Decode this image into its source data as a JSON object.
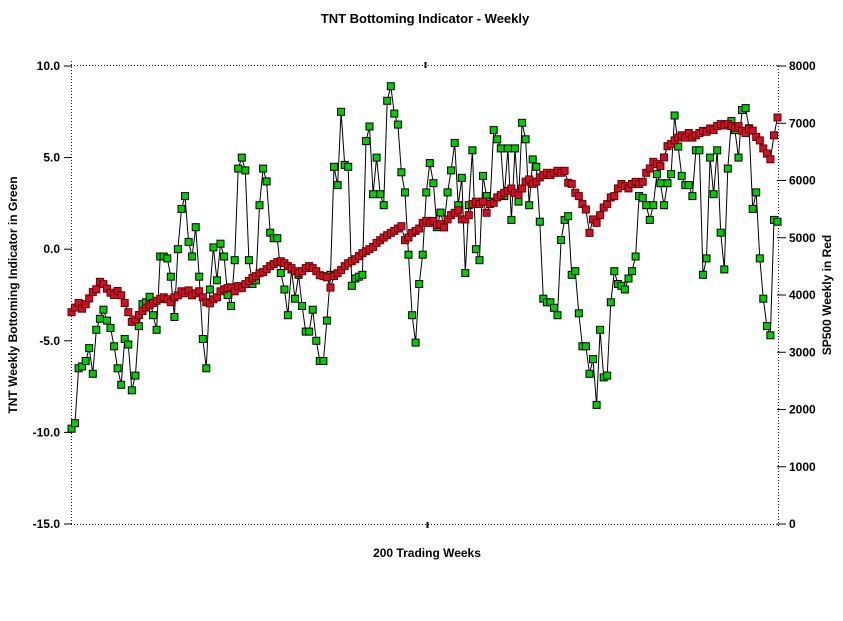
{
  "title": "TNT Bottoming Indicator - Weekly",
  "chart_data": {
    "type": "line",
    "title": "TNT Bottoming Indicator - Weekly",
    "xlabel": "200 Trading Weeks",
    "x_count": 200,
    "grid": false,
    "legend_position": "none",
    "frame_style": "dotted",
    "left_axis": {
      "label": "TNT Weekly Bottoming Indicator in Green",
      "min": -15.0,
      "max": 10.0,
      "ticks": [
        {
          "value": 10,
          "label": "10.0"
        },
        {
          "value": 5,
          "label": "5.0"
        },
        {
          "value": 0,
          "label": "0.0"
        },
        {
          "value": -5,
          "label": "-5.0"
        },
        {
          "value": -10,
          "label": "-10.0"
        },
        {
          "value": -15,
          "label": "-15.0"
        }
      ]
    },
    "right_axis": {
      "label": "SP500 Weekly in Red",
      "min": 0,
      "max": 8000,
      "ticks": [
        {
          "value": 8000,
          "label": "8000"
        },
        {
          "value": 7000,
          "label": "7000"
        },
        {
          "value": 6000,
          "label": "6000"
        },
        {
          "value": 5000,
          "label": "5000"
        },
        {
          "value": 4000,
          "label": "4000"
        },
        {
          "value": 3000,
          "label": "3000"
        },
        {
          "value": 2000,
          "label": "2000"
        },
        {
          "value": 1000,
          "label": "1000"
        },
        {
          "value": 0,
          "label": "0"
        }
      ]
    },
    "series": [
      {
        "name": "tnt-indicator",
        "display_name": "TNT Weekly Bottoming Indicator (Green)",
        "axis": "left",
        "marker": "square",
        "color": "#00CC00",
        "border": "#000000",
        "values": [
          -9.8,
          -9.5,
          -6.5,
          -6.4,
          -6.1,
          -5.4,
          -6.8,
          -4.4,
          -3.8,
          -3.3,
          -3.9,
          -4.3,
          -5.3,
          -6.5,
          -7.4,
          -4.9,
          -5.2,
          -7.7,
          -6.9,
          -4.2,
          -3.0,
          -2.9,
          -2.6,
          -3.6,
          -4.4,
          -0.4,
          -0.4,
          -0.5,
          -1.5,
          -3.7,
          0.0,
          2.2,
          2.9,
          0.4,
          -0.4,
          1.2,
          -1.5,
          -4.9,
          -6.5,
          -2.2,
          0.1,
          -1.7,
          0.3,
          -0.4,
          -2.5,
          -3.1,
          -0.6,
          4.4,
          5.0,
          4.3,
          -0.6,
          -1.9,
          -1.7,
          2.4,
          4.4,
          3.7,
          0.9,
          0.6,
          0.6,
          -1.3,
          -2.2,
          -3.6,
          -1.1,
          -2.7,
          -1.4,
          -3.1,
          -4.5,
          -4.5,
          -3.3,
          -5.0,
          -6.1,
          -6.1,
          -3.9,
          -1.4,
          4.5,
          3.5,
          7.5,
          4.6,
          4.5,
          -2.0,
          -1.6,
          -1.5,
          -1.4,
          5.9,
          6.7,
          3.0,
          5.0,
          3.0,
          2.4,
          8.1,
          8.9,
          7.4,
          6.8,
          4.2,
          3.1,
          -0.3,
          -3.6,
          -5.1,
          -1.9,
          -0.3,
          3.1,
          4.7,
          3.6,
          1.2,
          2.0,
          1.3,
          3.1,
          4.3,
          5.8,
          2.4,
          3.9,
          -1.3,
          2.4,
          5.4,
          0.0,
          -0.6,
          4.0,
          2.9,
          2.6,
          6.5,
          6.0,
          5.5,
          2.9,
          5.5,
          1.6,
          5.5,
          2.6,
          6.9,
          6.0,
          2.4,
          4.9,
          4.5,
          1.5,
          -2.7,
          -2.9,
          -2.9,
          -3.2,
          -3.6,
          0.5,
          1.6,
          1.8,
          -1.4,
          -1.2,
          -3.5,
          -5.3,
          -5.3,
          -6.8,
          -6.0,
          -8.5,
          -4.4,
          -7.0,
          -6.9,
          -2.9,
          -1.2,
          -1.9,
          -2.0,
          -2.2,
          -1.6,
          -1.2,
          -0.4,
          2.9,
          2.8,
          2.4,
          1.6,
          2.4,
          4.1,
          3.6,
          2.4,
          3.6,
          4.1,
          7.3,
          5.6,
          4.0,
          3.5,
          3.5,
          2.9,
          5.4,
          5.4,
          -1.4,
          -0.5,
          5.0,
          3.0,
          5.4,
          0.9,
          -1.1,
          4.4,
          7.0,
          6.5,
          5.0,
          7.6,
          7.7,
          6.6,
          2.2,
          3.1,
          -0.5,
          -2.7,
          -4.2,
          -4.7,
          1.6,
          1.5
        ]
      },
      {
        "name": "sp500",
        "display_name": "SP500 Weekly (Red)",
        "axis": "right",
        "marker": "square",
        "color": "#CE1126",
        "border": "#600000",
        "values": [
          3700,
          3780,
          3860,
          3760,
          3840,
          3940,
          4050,
          4100,
          4230,
          4190,
          4110,
          4040,
          4000,
          4070,
          3995,
          3860,
          3700,
          3530,
          3570,
          3650,
          3720,
          3780,
          3820,
          3860,
          3900,
          3930,
          3960,
          3925,
          3875,
          3960,
          3995,
          4065,
          4030,
          4080,
          3995,
          4030,
          4065,
          3960,
          3875,
          3855,
          3925,
          3960,
          4065,
          4100,
          4120,
          4135,
          4065,
          4155,
          4120,
          4190,
          4245,
          4295,
          4330,
          4380,
          4400,
          4450,
          4505,
          4540,
          4575,
          4590,
          4555,
          4505,
          4470,
          4415,
          4380,
          4415,
          4470,
          4505,
          4470,
          4415,
          4345,
          4330,
          4310,
          4130,
          4330,
          4380,
          4435,
          4505,
          4555,
          4590,
          4625,
          4680,
          4730,
          4765,
          4800,
          4840,
          4910,
          4957,
          5004,
          5045,
          5085,
          5120,
          5162,
          5202,
          4957,
          5004,
          5085,
          5120,
          5162,
          5260,
          5295,
          5260,
          5295,
          5220,
          5237,
          5180,
          5320,
          5395,
          5435,
          5480,
          5320,
          5320,
          5395,
          5590,
          5630,
          5590,
          5630,
          5435,
          5590,
          5610,
          5705,
          5745,
          5785,
          5820,
          5860,
          5785,
          5745,
          5860,
          5980,
          6020,
          5940,
          5980,
          6055,
          6095,
          6135,
          6095,
          6135,
          6170,
          6135,
          6170,
          5960,
          5940,
          5785,
          5727,
          5587,
          5494,
          5085,
          5320,
          5260,
          5394,
          5529,
          5587,
          5705,
          5727,
          5862,
          5938,
          5902,
          5862,
          5938,
          5978,
          5938,
          5978,
          6135,
          6210,
          6327,
          6287,
          6252,
          6404,
          6600,
          6635,
          6700,
          6750,
          6790,
          6750,
          6830,
          6750,
          6790,
          6830,
          6867,
          6850,
          6909,
          6880,
          6950,
          6985,
          6960,
          6985,
          6950,
          6920,
          6950,
          6870,
          6830,
          6900,
          6870,
          6760,
          6700,
          6560,
          6470,
          6370,
          6790,
          7100
        ]
      }
    ]
  }
}
